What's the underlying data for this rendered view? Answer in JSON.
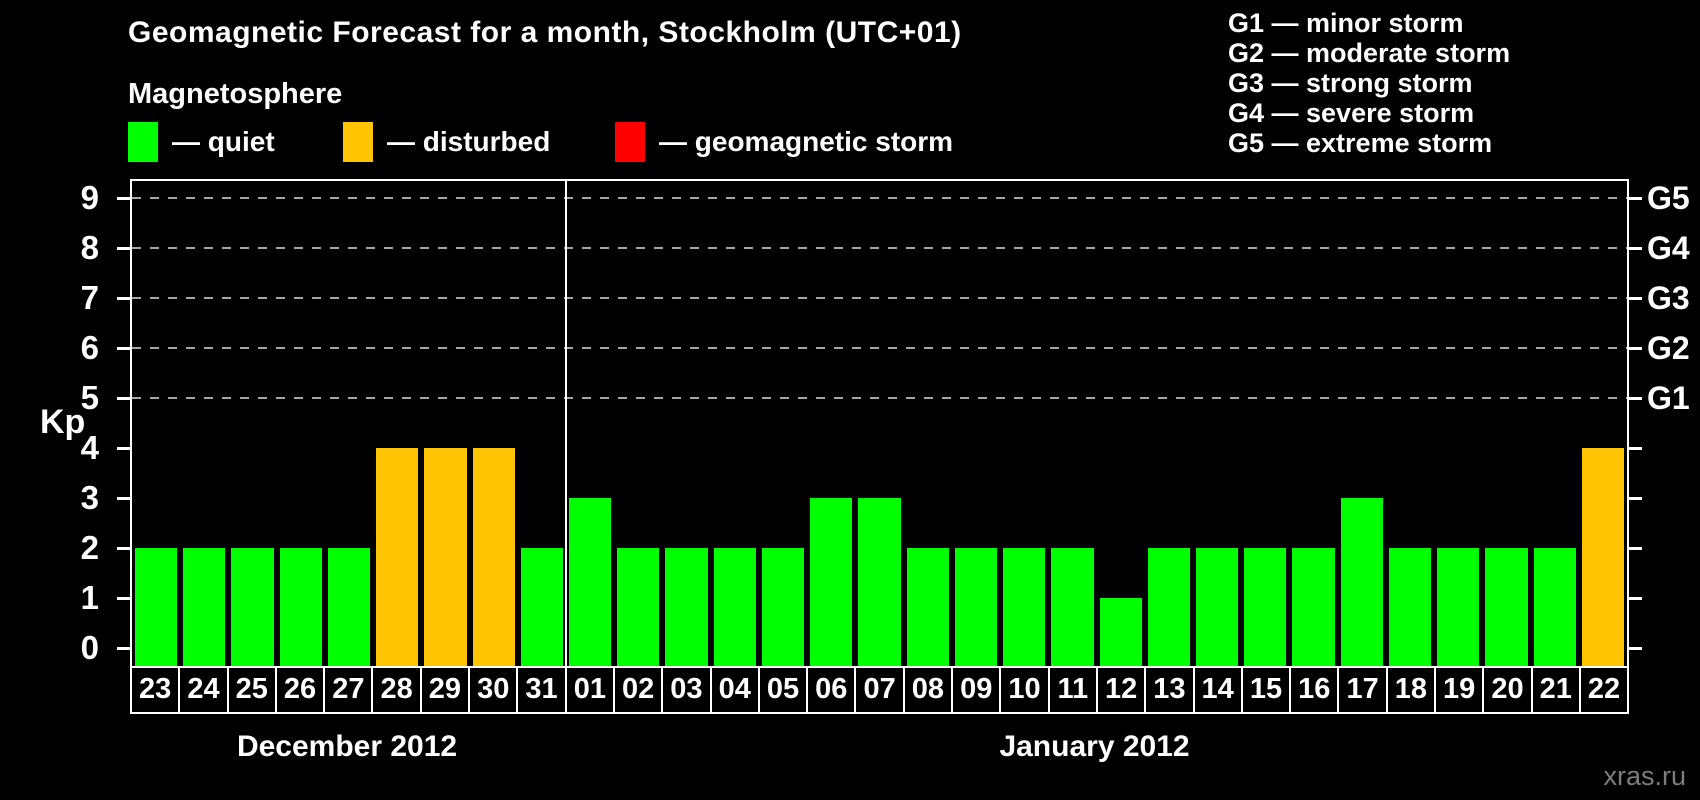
{
  "title": "Geomagnetic Forecast for a month, Stockholm (UTC+01)",
  "subtitle": "Magnetosphere",
  "legend": [
    {
      "name": "quiet",
      "label": "— quiet",
      "color": "#00ff00"
    },
    {
      "name": "disturbed",
      "label": "— disturbed",
      "color": "#ffc400"
    },
    {
      "name": "geomagnetic-storm",
      "label": "— geomagnetic storm",
      "color": "#ff0000"
    }
  ],
  "storm_scale_legend": [
    "G1 — minor storm",
    "G2 — moderate storm",
    "G3 — strong storm",
    "G4 — severe storm",
    "G5 — extreme storm"
  ],
  "watermark": "xras.ru",
  "chart_data": {
    "type": "bar",
    "title": "Geomagnetic Forecast for a month, Stockholm (UTC+01)",
    "ylabel": "Kp",
    "ylim": [
      0,
      9
    ],
    "yticks": [
      0,
      1,
      2,
      3,
      4,
      5,
      6,
      7,
      8,
      9
    ],
    "gridlines_kp": [
      5,
      6,
      7,
      8,
      9
    ],
    "grid_style": "dashed",
    "right_axis_labels": [
      {
        "kp": 5,
        "label": "G1"
      },
      {
        "kp": 6,
        "label": "G2"
      },
      {
        "kp": 7,
        "label": "G3"
      },
      {
        "kp": 8,
        "label": "G4"
      },
      {
        "kp": 9,
        "label": "G5"
      }
    ],
    "status_colors": {
      "quiet": "#00ff00",
      "disturbed": "#ffc400",
      "storm": "#ff0000"
    },
    "months": [
      {
        "label": "December 2012",
        "bars": [
          {
            "day": "23",
            "kp": 2,
            "status": "quiet"
          },
          {
            "day": "24",
            "kp": 2,
            "status": "quiet"
          },
          {
            "day": "25",
            "kp": 2,
            "status": "quiet"
          },
          {
            "day": "26",
            "kp": 2,
            "status": "quiet"
          },
          {
            "day": "27",
            "kp": 2,
            "status": "quiet"
          },
          {
            "day": "28",
            "kp": 4,
            "status": "disturbed"
          },
          {
            "day": "29",
            "kp": 4,
            "status": "disturbed"
          },
          {
            "day": "30",
            "kp": 4,
            "status": "disturbed"
          },
          {
            "day": "31",
            "kp": 2,
            "status": "quiet"
          }
        ]
      },
      {
        "label": "January 2012",
        "bars": [
          {
            "day": "01",
            "kp": 3,
            "status": "quiet"
          },
          {
            "day": "02",
            "kp": 2,
            "status": "quiet"
          },
          {
            "day": "03",
            "kp": 2,
            "status": "quiet"
          },
          {
            "day": "04",
            "kp": 2,
            "status": "quiet"
          },
          {
            "day": "05",
            "kp": 2,
            "status": "quiet"
          },
          {
            "day": "06",
            "kp": 3,
            "status": "quiet"
          },
          {
            "day": "07",
            "kp": 3,
            "status": "quiet"
          },
          {
            "day": "08",
            "kp": 2,
            "status": "quiet"
          },
          {
            "day": "09",
            "kp": 2,
            "status": "quiet"
          },
          {
            "day": "10",
            "kp": 2,
            "status": "quiet"
          },
          {
            "day": "11",
            "kp": 2,
            "status": "quiet"
          },
          {
            "day": "12",
            "kp": 1,
            "status": "quiet"
          },
          {
            "day": "13",
            "kp": 2,
            "status": "quiet"
          },
          {
            "day": "14",
            "kp": 2,
            "status": "quiet"
          },
          {
            "day": "15",
            "kp": 2,
            "status": "quiet"
          },
          {
            "day": "16",
            "kp": 2,
            "status": "quiet"
          },
          {
            "day": "17",
            "kp": 3,
            "status": "quiet"
          },
          {
            "day": "18",
            "kp": 2,
            "status": "quiet"
          },
          {
            "day": "19",
            "kp": 2,
            "status": "quiet"
          },
          {
            "day": "20",
            "kp": 2,
            "status": "quiet"
          },
          {
            "day": "21",
            "kp": 2,
            "status": "quiet"
          },
          {
            "day": "22",
            "kp": 4,
            "status": "disturbed"
          }
        ]
      }
    ]
  },
  "colors": {
    "background": "#000000",
    "axis": "#ffffff",
    "grid": "#a6a6a6",
    "watermark": "#7d7d7d"
  }
}
